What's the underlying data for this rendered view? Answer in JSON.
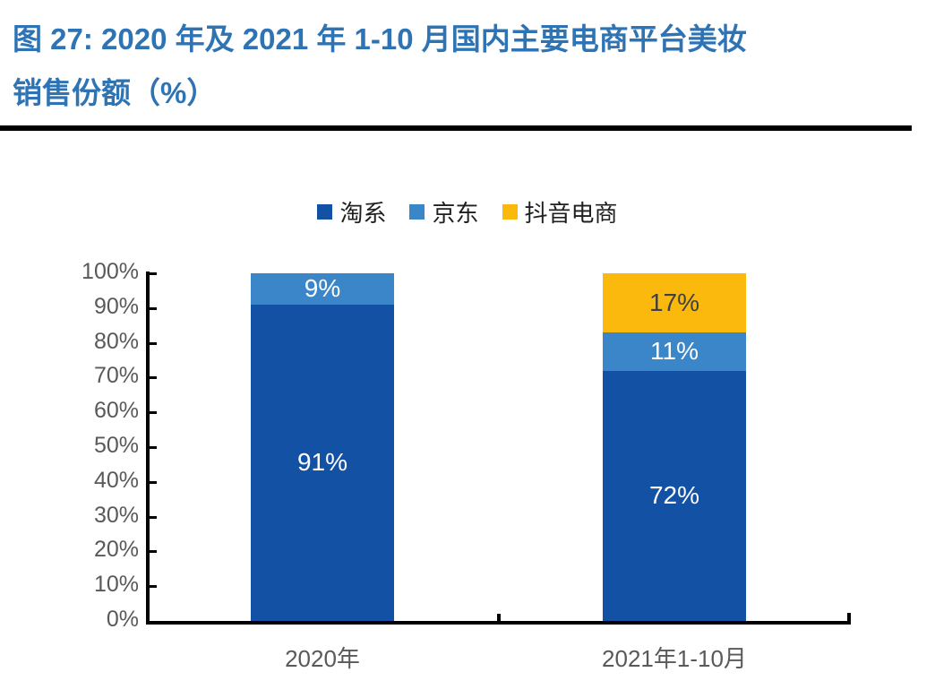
{
  "figure": {
    "title_line1": "图 27: 2020 年及 2021 年 1-10 月国内主要电商平台美妆",
    "title_line2": "销售份额（%）",
    "title_color": "#2E74B5"
  },
  "chart_data": {
    "type": "bar",
    "stacked": true,
    "title": "2020年及2021年1-10月国内主要电商平台美妆销售份额（%）",
    "categories": [
      "2020年",
      "2021年1-10月"
    ],
    "series": [
      {
        "name": "淘系",
        "color": "#1351A5",
        "label_color": "#FFFFFF",
        "values": [
          91,
          72
        ]
      },
      {
        "name": "京东",
        "color": "#3A86C8",
        "label_color": "#FFFFFF",
        "values": [
          9,
          11
        ]
      },
      {
        "name": "抖音电商",
        "color": "#FBB90D",
        "label_color": "#404040",
        "values": [
          0,
          17
        ]
      }
    ],
    "value_suffix": "%",
    "ylim": [
      0,
      100
    ],
    "ytick_step": 10,
    "ytick_suffix": "%",
    "legend_position": "top",
    "grid": false,
    "axis_color": "#000000",
    "tick_label_color": "#595959"
  }
}
